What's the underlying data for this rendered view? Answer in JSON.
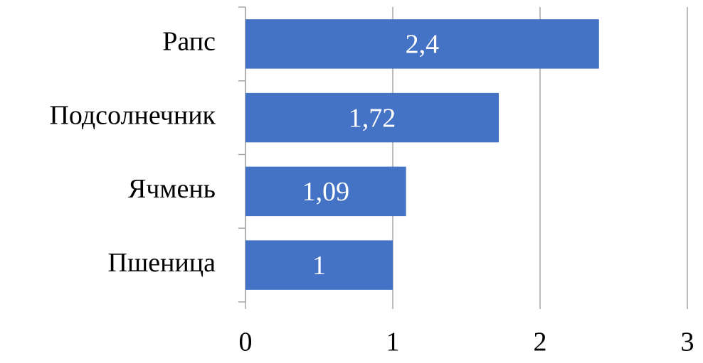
{
  "chart_data": {
    "type": "barh",
    "categories": [
      "Рапс",
      "Подсолнечник",
      "Ячмень",
      "Пшеница"
    ],
    "values": [
      2.4,
      1.72,
      1.09,
      1
    ],
    "value_labels": [
      "2,4",
      "1,72",
      "1,09",
      "1"
    ],
    "color": "#4472c4",
    "xlim": [
      0,
      3
    ],
    "xticks": [
      0,
      1,
      2,
      3
    ],
    "grid": true
  }
}
